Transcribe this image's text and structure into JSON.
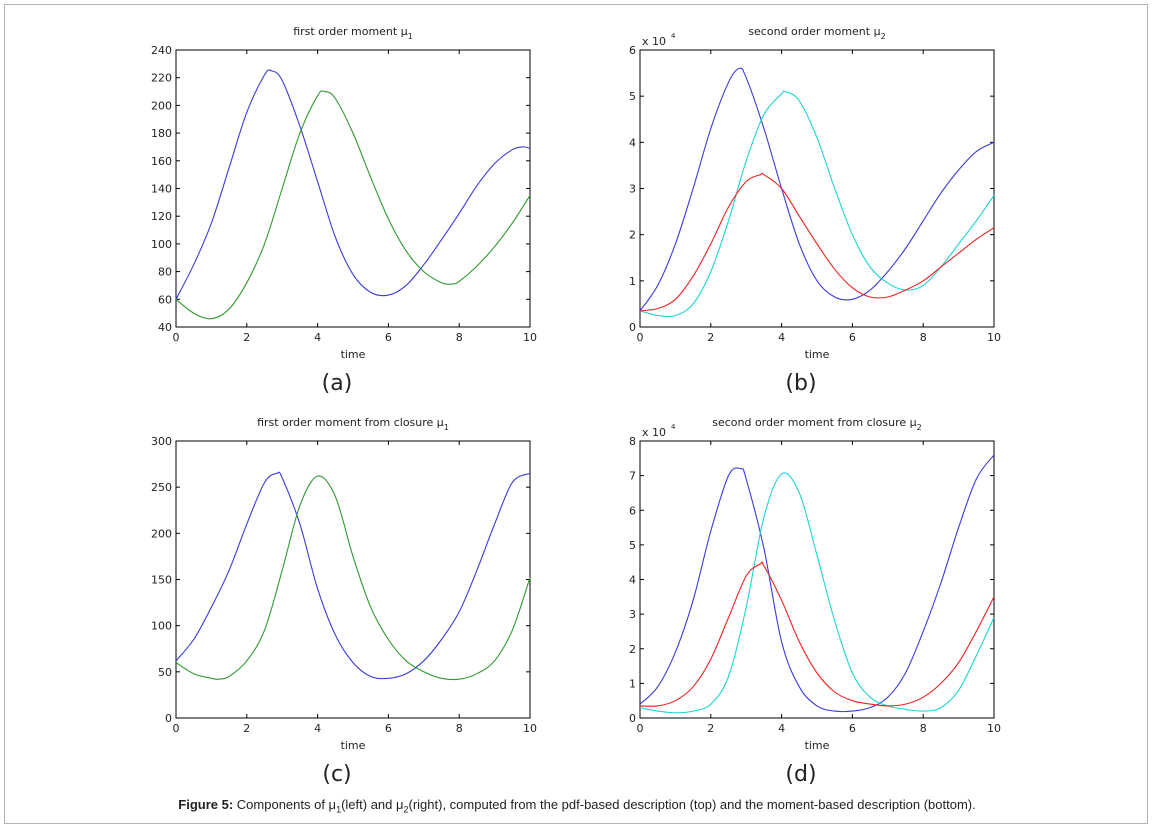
{
  "caption": {
    "label": "Figure 5:",
    "part1": " Components of μ",
    "sub1": "1",
    "part2": "(left) and μ",
    "sub2": "2",
    "part3": "(right), computed from the pdf-based description (top) and the moment-based description (bottom)."
  },
  "colors": {
    "blue": "#3a3adc",
    "green": "#2f9a2f",
    "cyan": "#1fd3d3",
    "red": "#ef2020"
  },
  "chart_data": [
    {
      "id": "a",
      "type": "line",
      "panel_label": "(a)",
      "title": "first order moment μ",
      "title_sub": "1",
      "xlabel": "time",
      "ylabel": "",
      "xlim": [
        0,
        10
      ],
      "ylim": [
        40,
        240
      ],
      "xticks": [
        0,
        2,
        4,
        6,
        8,
        10
      ],
      "yticks": [
        40,
        60,
        80,
        100,
        120,
        140,
        160,
        180,
        200,
        220,
        240
      ],
      "exponent_label": "",
      "grid": false,
      "series": [
        {
          "color": "#3a3adc",
          "x": [
            0,
            0.5,
            1,
            1.5,
            2,
            2.5,
            2.7,
            3,
            3.5,
            4,
            4.5,
            5,
            5.5,
            6,
            6.5,
            7,
            7.5,
            8,
            8.5,
            9,
            9.5,
            9.8,
            10
          ],
          "y": [
            60,
            85,
            115,
            155,
            195,
            222,
            225,
            218,
            185,
            145,
            105,
            78,
            65,
            63,
            70,
            85,
            103,
            122,
            142,
            158,
            168,
            170,
            169
          ]
        },
        {
          "color": "#2f9a2f",
          "x": [
            0,
            0.5,
            1,
            1.5,
            2,
            2.5,
            3,
            3.5,
            4,
            4.2,
            4.5,
            5,
            5.5,
            6,
            6.5,
            7,
            7.5,
            7.8,
            8,
            8.5,
            9,
            9.5,
            10
          ],
          "y": [
            60,
            50,
            46,
            53,
            72,
            100,
            140,
            180,
            207,
            210,
            205,
            180,
            148,
            118,
            95,
            80,
            72,
            71,
            73,
            84,
            98,
            115,
            135
          ]
        }
      ]
    },
    {
      "id": "b",
      "type": "line",
      "panel_label": "(b)",
      "title": "second order moment μ",
      "title_sub": "2",
      "xlabel": "time",
      "ylabel": "",
      "xlim": [
        0,
        10
      ],
      "ylim": [
        0,
        6
      ],
      "xticks": [
        0,
        2,
        4,
        6,
        8,
        10
      ],
      "yticks": [
        0,
        1,
        2,
        3,
        4,
        5,
        6
      ],
      "exponent_label": "x 10",
      "exponent_power": "4",
      "grid": false,
      "series": [
        {
          "color": "#3a3adc",
          "x": [
            0,
            0.5,
            1,
            1.5,
            2,
            2.5,
            2.8,
            3,
            3.5,
            4,
            4.5,
            5,
            5.5,
            6,
            6.5,
            7,
            7.5,
            8,
            8.5,
            9,
            9.5,
            10
          ],
          "y": [
            0.35,
            0.9,
            1.8,
            3.0,
            4.3,
            5.3,
            5.6,
            5.4,
            4.3,
            3.0,
            1.8,
            1.0,
            0.65,
            0.6,
            0.8,
            1.2,
            1.7,
            2.3,
            2.9,
            3.4,
            3.8,
            4.0
          ]
        },
        {
          "color": "#1fd3d3",
          "x": [
            0,
            0.5,
            1,
            1.5,
            2,
            2.5,
            3,
            3.5,
            4,
            4.1,
            4.5,
            5,
            5.5,
            6,
            6.5,
            7,
            7.5,
            8,
            8.5,
            9,
            9.5,
            10
          ],
          "y": [
            0.35,
            0.25,
            0.25,
            0.5,
            1.2,
            2.3,
            3.6,
            4.6,
            5.05,
            5.1,
            4.9,
            4.1,
            3.0,
            2.0,
            1.3,
            0.95,
            0.8,
            0.9,
            1.3,
            1.8,
            2.3,
            2.85
          ]
        },
        {
          "color": "#ef2020",
          "x": [
            0,
            0.5,
            1,
            1.5,
            2,
            2.5,
            3,
            3.4,
            3.5,
            4,
            4.5,
            5,
            5.5,
            6,
            6.5,
            7,
            7.5,
            8,
            8.5,
            9,
            9.5,
            10
          ],
          "y": [
            0.35,
            0.4,
            0.6,
            1.1,
            1.8,
            2.6,
            3.15,
            3.3,
            3.3,
            3.0,
            2.4,
            1.8,
            1.25,
            0.85,
            0.65,
            0.65,
            0.8,
            1.0,
            1.3,
            1.6,
            1.9,
            2.15
          ]
        }
      ]
    },
    {
      "id": "c",
      "type": "line",
      "panel_label": "(c)",
      "title": "first order moment from closure μ",
      "title_sub": "1",
      "xlabel": "time",
      "ylabel": "",
      "xlim": [
        0,
        10
      ],
      "ylim": [
        0,
        300
      ],
      "xticks": [
        0,
        2,
        4,
        6,
        8,
        10
      ],
      "yticks": [
        0,
        50,
        100,
        150,
        200,
        250,
        300
      ],
      "exponent_label": "",
      "grid": false,
      "series": [
        {
          "color": "#3a3adc",
          "x": [
            0,
            0.5,
            1,
            1.5,
            2,
            2.5,
            2.85,
            3,
            3.5,
            4,
            4.5,
            5,
            5.5,
            6,
            6.5,
            7,
            7.5,
            8,
            8.5,
            9,
            9.5,
            10
          ],
          "y": [
            62,
            85,
            120,
            160,
            210,
            255,
            265,
            260,
            210,
            140,
            90,
            60,
            45,
            43,
            48,
            62,
            85,
            115,
            160,
            210,
            255,
            265
          ]
        },
        {
          "color": "#2f9a2f",
          "x": [
            0,
            0.5,
            1,
            1.2,
            1.5,
            2,
            2.5,
            3,
            3.5,
            4,
            4.5,
            5,
            5.5,
            6,
            6.5,
            7,
            7.5,
            8,
            8.5,
            9,
            9.5,
            10
          ],
          "y": [
            60,
            48,
            43,
            42,
            45,
            62,
            95,
            160,
            230,
            262,
            240,
            175,
            120,
            85,
            62,
            50,
            43,
            42,
            48,
            62,
            95,
            152
          ]
        }
      ]
    },
    {
      "id": "d",
      "type": "line",
      "panel_label": "(d)",
      "title": "second order moment from closure μ",
      "title_sub": "2",
      "xlabel": "time",
      "ylabel": "",
      "xlim": [
        0,
        10
      ],
      "ylim": [
        0,
        8
      ],
      "xticks": [
        0,
        2,
        4,
        6,
        8,
        10
      ],
      "yticks": [
        0,
        1,
        2,
        3,
        4,
        5,
        6,
        7,
        8
      ],
      "exponent_label": "x 10",
      "exponent_power": "4",
      "grid": false,
      "series": [
        {
          "color": "#3a3adc",
          "x": [
            0,
            0.5,
            1,
            1.5,
            2,
            2.5,
            2.85,
            3,
            3.5,
            4,
            4.5,
            5,
            5.5,
            6,
            6.5,
            7,
            7.5,
            8,
            8.5,
            9,
            9.5,
            10
          ],
          "y": [
            0.4,
            0.9,
            1.9,
            3.4,
            5.4,
            7.0,
            7.2,
            6.9,
            4.9,
            2.2,
            0.9,
            0.35,
            0.2,
            0.2,
            0.3,
            0.6,
            1.3,
            2.5,
            3.9,
            5.5,
            6.9,
            7.6
          ]
        },
        {
          "color": "#1fd3d3",
          "x": [
            0,
            0.5,
            1,
            1.5,
            2,
            2.5,
            3,
            3.5,
            4,
            4.5,
            5,
            5.5,
            6,
            6.5,
            7,
            7.5,
            8,
            8.5,
            9,
            9.5,
            10
          ],
          "y": [
            0.3,
            0.2,
            0.15,
            0.2,
            0.4,
            1.2,
            3.2,
            5.8,
            7.05,
            6.5,
            4.7,
            2.8,
            1.3,
            0.6,
            0.35,
            0.25,
            0.2,
            0.3,
            0.8,
            1.8,
            2.9
          ]
        },
        {
          "color": "#ef2020",
          "x": [
            0,
            0.5,
            1,
            1.5,
            2,
            2.5,
            3,
            3.4,
            3.5,
            4,
            4.5,
            5,
            5.5,
            6,
            6.5,
            7,
            7.5,
            8,
            8.5,
            9,
            9.5,
            10
          ],
          "y": [
            0.35,
            0.35,
            0.5,
            0.9,
            1.7,
            2.9,
            4.1,
            4.45,
            4.4,
            3.4,
            2.2,
            1.3,
            0.75,
            0.5,
            0.4,
            0.35,
            0.4,
            0.6,
            1.0,
            1.6,
            2.5,
            3.5
          ]
        }
      ]
    }
  ]
}
